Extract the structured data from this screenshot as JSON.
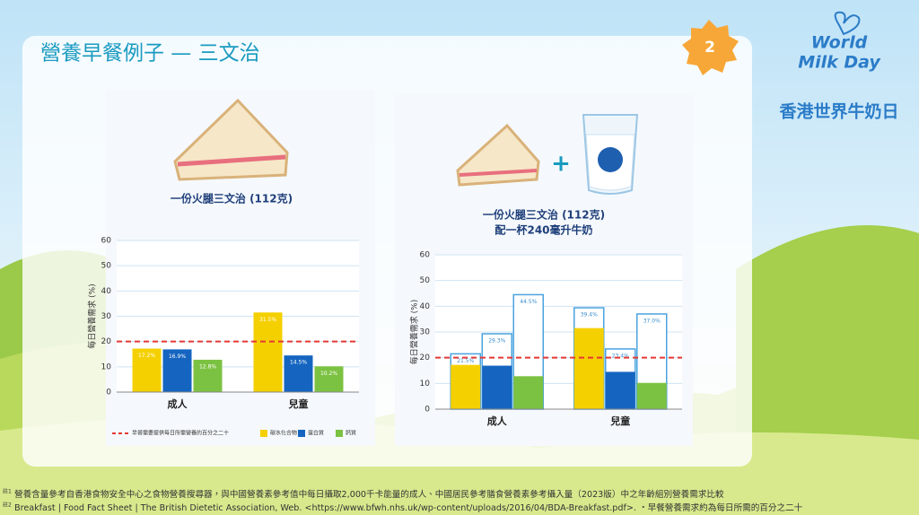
{
  "header": {
    "title": "營養早餐例子 — 三文治",
    "page_number": "2",
    "logo": {
      "line1": "World",
      "line2": "Milk Day",
      "subtitle": "香港世界牛奶日"
    }
  },
  "chart_data": [
    {
      "type": "bar",
      "caption": [
        "一份火腿三文治 (112克)"
      ],
      "y_label": "每日營養需求 (%)",
      "categories": [
        "成人",
        "兒童"
      ],
      "series": [
        {
          "name": "碳水化合物",
          "color": "#f5d000",
          "values": [
            17.2,
            31.5
          ],
          "value_labels": [
            "17.2%",
            "31.5%"
          ]
        },
        {
          "name": "蛋白質",
          "color": "#1565c0",
          "values": [
            16.9,
            14.5
          ],
          "value_labels": [
            "16.9%",
            "14.5%"
          ]
        },
        {
          "name": "鈣質",
          "color": "#7cc242",
          "values": [
            12.8,
            10.2
          ],
          "value_labels": [
            "12.8%",
            "10.2%"
          ]
        }
      ],
      "ylim": [
        0,
        60
      ],
      "yticks": [
        0,
        10,
        20,
        30,
        40,
        50,
        60
      ],
      "grid": true,
      "reference_line": {
        "value": 20,
        "color": "#e53935",
        "label": "早餐需要提供每日所需營養的百分之二十"
      },
      "legend": "bottom"
    },
    {
      "type": "bar",
      "caption": [
        "一份火腿三文治 (112克)",
        "配一杯240毫升牛奶"
      ],
      "y_label": "每日營養需求 (%)",
      "categories": [
        "成人",
        "兒童"
      ],
      "series": [
        {
          "color": "#f5d000",
          "values": [
            17.2,
            31.5
          ],
          "totals": [
            21.5,
            39.4
          ],
          "total_labels": [
            "21.5%",
            "39.4%"
          ]
        },
        {
          "color": "#1565c0",
          "values": [
            16.9,
            14.5
          ],
          "totals": [
            29.3,
            23.4
          ],
          "total_labels": [
            "29.3%",
            "23.4%"
          ]
        },
        {
          "color": "#7cc242",
          "values": [
            12.8,
            10.2
          ],
          "totals": [
            44.5,
            37.0
          ],
          "total_labels": [
            "44.5%",
            "37.0%"
          ]
        }
      ],
      "ylim": [
        0,
        60
      ],
      "yticks": [
        0,
        10,
        20,
        30,
        40,
        50,
        60
      ],
      "grid": true,
      "reference_line": {
        "value": 20,
        "color": "#e53935"
      }
    }
  ],
  "footnotes": [
    {
      "mark": "註1",
      "text": "營養含量參考自香港食物安全中心之食物營養搜尋器，與中國營養素參考值中每日攝取2,000千卡能量的成人、中國居民參考膳食營養素參考攝入量（2023版）中之年齡組別營養需求比較"
    },
    {
      "mark": "註2",
      "text": "Breakfast | Food Fact Sheet | The British Dietetic Association,  Web. <https://www.bfwh.nhs.uk/wp-content/uploads/2016/04/BDA-Breakfast.pdf>. ・早餐營養需求約為每日所需的百分之二十"
    }
  ]
}
